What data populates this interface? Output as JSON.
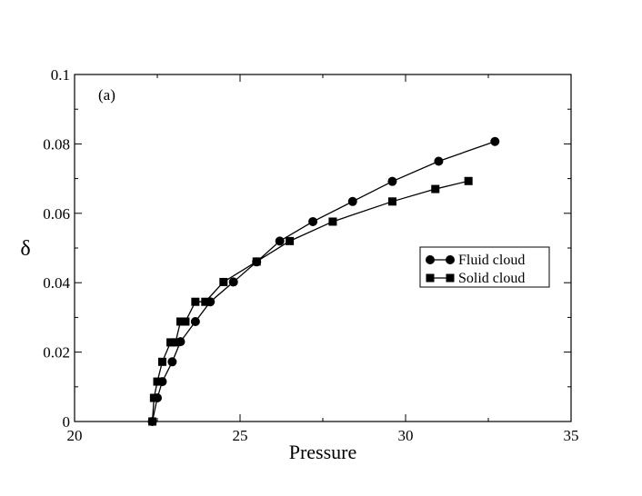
{
  "chart_data": {
    "type": "line",
    "annotation": "(a)",
    "xlabel": "Pressure",
    "ylabel": "δ",
    "xlim": [
      20,
      35
    ],
    "ylim": [
      0,
      0.1
    ],
    "x_ticks": [
      "20",
      "25",
      "30",
      "35"
    ],
    "y_ticks": [
      "0",
      "0.02",
      "0.04",
      "0.06",
      "0.08",
      "0.1"
    ],
    "grid": false,
    "legend_position": "middle-right",
    "series": [
      {
        "name": "Fluid cloud",
        "marker": "circle",
        "color": "#000000",
        "x": [
          22.35,
          22.5,
          22.65,
          22.95,
          23.2,
          23.65,
          24.1,
          24.8,
          25.5,
          26.2,
          27.2,
          28.4,
          29.6,
          31.0,
          32.7
        ],
        "y": [
          0.0,
          0.0068,
          0.0115,
          0.0172,
          0.023,
          0.0288,
          0.0345,
          0.0402,
          0.046,
          0.052,
          0.0576,
          0.0634,
          0.0692,
          0.075,
          0.0807
        ]
      },
      {
        "name": "Solid cloud",
        "marker": "square",
        "color": "#000000",
        "x": [
          22.35,
          22.4,
          22.5,
          22.65,
          22.9,
          23.05,
          23.2,
          23.35,
          23.65,
          23.95,
          24.5,
          25.5,
          26.5,
          27.8,
          29.6,
          30.9,
          31.9
        ],
        "y": [
          0.0,
          0.0068,
          0.0115,
          0.0172,
          0.0228,
          0.0228,
          0.0288,
          0.0288,
          0.0345,
          0.0345,
          0.0402,
          0.0461,
          0.052,
          0.0576,
          0.0634,
          0.067,
          0.0693
        ]
      }
    ]
  }
}
